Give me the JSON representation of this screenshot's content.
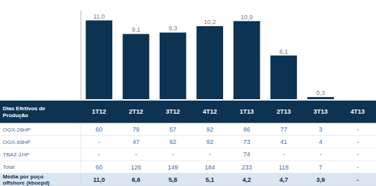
{
  "chart_data": {
    "type": "bar",
    "categories": [
      "1T12",
      "2T12",
      "3T12",
      "4T12",
      "1T13",
      "2T13",
      "3T13",
      "4T13"
    ],
    "values": [
      11.0,
      9.1,
      9.3,
      10.2,
      10.9,
      6.1,
      0.3,
      0
    ],
    "value_labels": [
      "11,0",
      "9,1",
      "9,3",
      "10,2",
      "10,9",
      "6,1",
      "0,3",
      null
    ],
    "color": "#0d3352",
    "ylim": [
      0,
      12.5
    ],
    "data_labels": true,
    "tick_labels": false,
    "grid": false,
    "table": {
      "header": "Dias Efetivos de\nProdução",
      "rows": [
        {
          "label": "OGX-26HP",
          "cells": [
            "60",
            "79",
            "57",
            "92",
            "86",
            "77",
            "3",
            "-"
          ]
        },
        {
          "label": "OGX-68HP",
          "cells": [
            "-",
            "47",
            "92",
            "92",
            "73",
            "41",
            "4",
            "-"
          ]
        },
        {
          "label": "TBAZ-1HP",
          "cells": [
            "-",
            "-",
            "-",
            "-",
            "74",
            "-",
            "-",
            "-"
          ]
        },
        {
          "label": "Total",
          "cells": [
            "60",
            "126",
            "149",
            "184",
            "233",
            "118",
            "7",
            "-"
          ]
        },
        {
          "label": "Média por poço\noffshore (kboepd)",
          "cells": [
            "11,0",
            "6,6",
            "5,8",
            "5,1",
            "4,2",
            "4,7",
            "3,9",
            "-"
          ]
        }
      ]
    }
  }
}
